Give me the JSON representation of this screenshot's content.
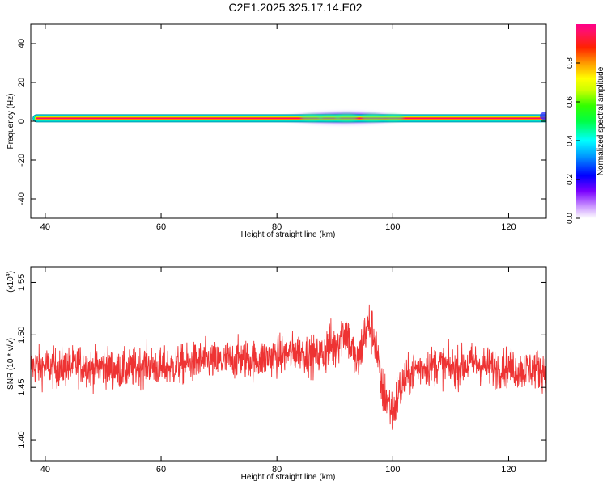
{
  "title": "C2E1.2025.325.17.14.E02",
  "colorbar": {
    "label": "Normalized spectral amplitude",
    "ticks": [
      "0.0",
      "0.2",
      "0.4",
      "0.6",
      "0.8"
    ],
    "tick_values": [
      0.0,
      0.2,
      0.4,
      0.6,
      0.8
    ],
    "range": [
      0,
      1
    ]
  },
  "chart_data": [
    {
      "type": "heatmap",
      "title": "",
      "xlabel": "Height of straight line (km)",
      "ylabel": "Frequency (Hz)",
      "xlim": [
        37.5,
        126.5
      ],
      "ylim": [
        -50,
        50
      ],
      "xticks": [
        40,
        60,
        80,
        100,
        120
      ],
      "yticks": [
        -40,
        -20,
        0,
        20,
        40
      ],
      "description_band": {
        "center_frequency_hz": 1.5,
        "spectral_peak_x_range": [
          38.5,
          126.5
        ],
        "broadening_x_range": [
          78,
          104
        ],
        "max_half_width_hz": 5
      }
    },
    {
      "type": "line",
      "title": "",
      "xlabel": "Height of straight line (km)",
      "ylabel": "SNR (10 * v/v)",
      "y_multiplier_label": "(x10",
      "y_multiplier_exp": "4",
      "y_multiplier_close": ")",
      "xlim": [
        37.5,
        126.5
      ],
      "ylim": [
        1.38,
        1.565
      ],
      "xticks": [
        40,
        60,
        80,
        100,
        120
      ],
      "yticks": [
        "1.40",
        "1.45",
        "1.50",
        "1.55"
      ],
      "ytick_values": [
        1.4,
        1.45,
        1.5,
        1.55
      ],
      "color": "#ee3333",
      "series": [
        {
          "x": [
            37.5,
            40,
            42,
            44,
            46,
            48,
            50,
            52,
            54,
            56,
            58,
            60,
            62,
            64,
            66,
            68,
            70,
            72,
            74,
            76,
            78,
            80,
            82,
            84,
            86,
            88,
            89,
            90,
            91,
            92,
            93,
            94,
            95,
            96,
            97,
            98,
            99,
            100,
            101,
            102,
            104,
            106,
            108,
            110,
            112,
            114,
            116,
            118,
            120,
            122,
            124,
            126.5
          ],
          "values": [
            1.47,
            1.47,
            1.468,
            1.47,
            1.472,
            1.468,
            1.47,
            1.468,
            1.466,
            1.47,
            1.472,
            1.468,
            1.47,
            1.472,
            1.474,
            1.476,
            1.474,
            1.476,
            1.478,
            1.476,
            1.478,
            1.48,
            1.482,
            1.484,
            1.48,
            1.482,
            1.49,
            1.488,
            1.5,
            1.505,
            1.485,
            1.47,
            1.5,
            1.51,
            1.495,
            1.45,
            1.44,
            1.425,
            1.445,
            1.455,
            1.468,
            1.47,
            1.472,
            1.468,
            1.47,
            1.474,
            1.47,
            1.468,
            1.47,
            1.466,
            1.468,
            1.466
          ],
          "noise_amplitude": 0.03
        }
      ]
    }
  ]
}
